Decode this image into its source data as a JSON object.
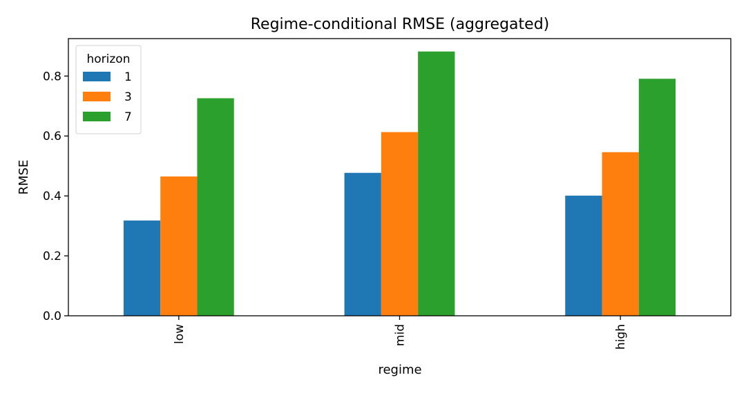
{
  "chart_data": {
    "type": "bar",
    "title": "Regime-conditional RMSE (aggregated)",
    "xlabel": "regime",
    "ylabel": "RMSE",
    "categories": [
      "low",
      "mid",
      "high"
    ],
    "ylim": [
      0,
      0.925
    ],
    "yticks": [
      "0.0",
      "0.2",
      "0.4",
      "0.6",
      "0.8"
    ],
    "grid": false,
    "legend": {
      "title": "horizon",
      "placement": "top-left"
    },
    "series": [
      {
        "name": "1",
        "color": "#1f77b4",
        "values": [
          0.318,
          0.477,
          0.401
        ]
      },
      {
        "name": "3",
        "color": "#ff7f0e",
        "values": [
          0.465,
          0.613,
          0.546
        ]
      },
      {
        "name": "7",
        "color": "#2ca02c",
        "values": [
          0.726,
          0.882,
          0.791
        ]
      }
    ]
  }
}
